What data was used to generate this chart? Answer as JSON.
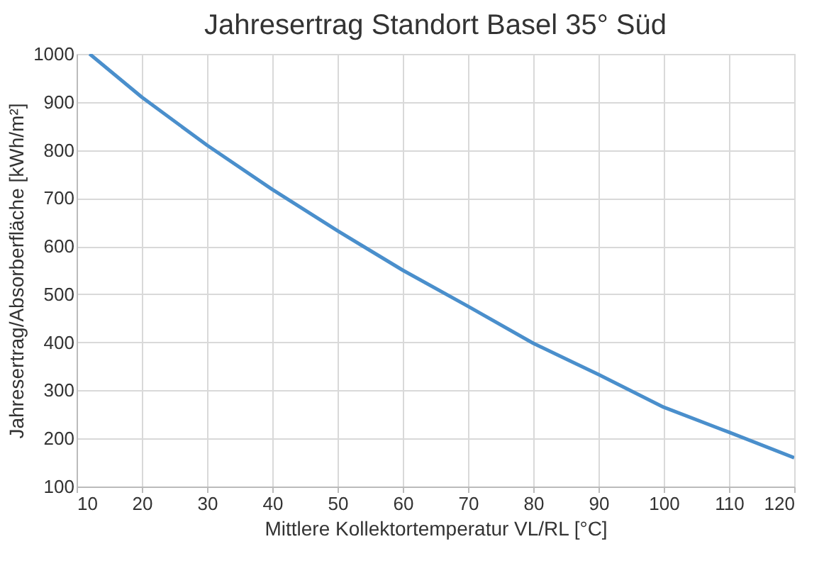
{
  "chart_data": {
    "type": "line",
    "title": "Jahresertrag Standort Basel 35° Süd",
    "xlabel": "Mittlere Kollektortemperatur VL/RL [°C]",
    "ylabel": "Jahresertrag/Absorberfläche [kWh/m²]",
    "x": [
      12,
      20,
      30,
      40,
      50,
      60,
      70,
      80,
      90,
      100,
      110,
      120
    ],
    "series": [
      {
        "color": "#4a8fcc",
        "values": [
          1000,
          910,
          810,
          718,
          632,
          550,
          475,
          398,
          333,
          265,
          213,
          160
        ]
      }
    ],
    "xlim": [
      10,
      120
    ],
    "xticks": [
      10,
      20,
      30,
      40,
      50,
      60,
      70,
      80,
      90,
      100,
      110,
      120
    ],
    "ylim": [
      100,
      1000
    ],
    "yticks": [
      100,
      200,
      300,
      400,
      500,
      600,
      700,
      800,
      900,
      1000
    ],
    "grid": true,
    "marker": "none",
    "line_style": "solid"
  }
}
